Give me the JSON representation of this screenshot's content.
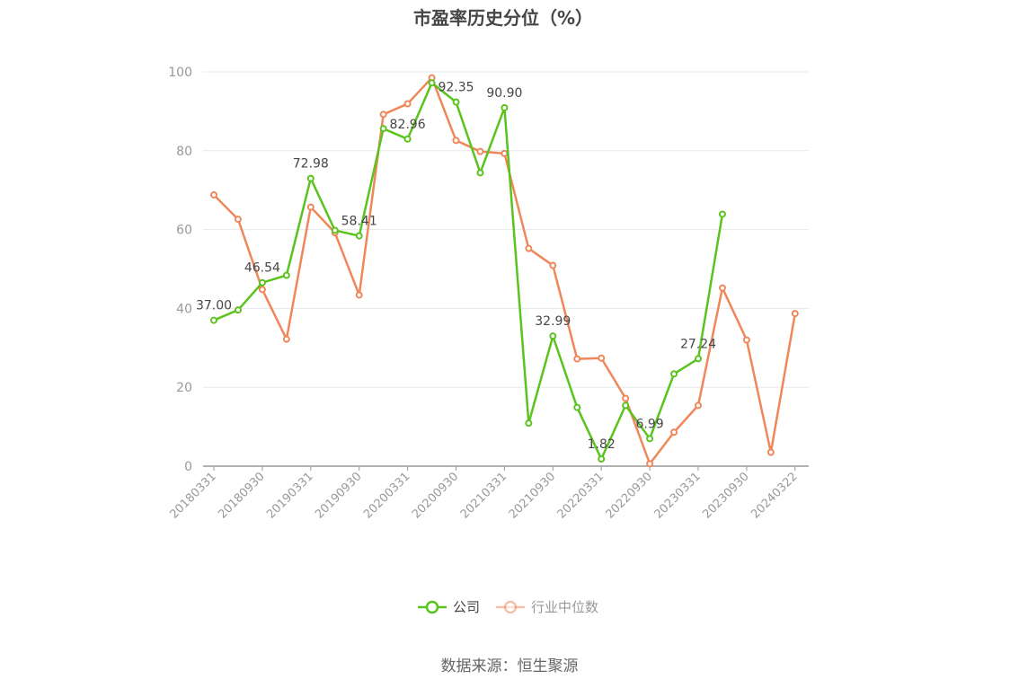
{
  "chart_data": {
    "type": "line",
    "title": "市盈率历史分位（%）",
    "ylim": [
      0,
      100
    ],
    "yticks": [
      0,
      20,
      40,
      60,
      80,
      100
    ],
    "x": [
      "20180331",
      "20180630",
      "20180930",
      "20181231",
      "20190331",
      "20190630",
      "20190930",
      "20191231",
      "20200331",
      "20200630",
      "20200930",
      "20201231",
      "20210331",
      "20210630",
      "20210930",
      "20211231",
      "20220331",
      "20220630",
      "20220930",
      "20221231",
      "20230331",
      "20230630",
      "20230930",
      "20231231",
      "20240322"
    ],
    "xtick_labels": [
      "20180331",
      "20180930",
      "20190331",
      "20190930",
      "20200331",
      "20200930",
      "20210331",
      "20210930",
      "20220331",
      "20220930",
      "20230331",
      "20230930",
      "20240322"
    ],
    "series": [
      {
        "name": "公司",
        "color": "#5ac31e",
        "values": [
          37.0,
          39.6,
          46.54,
          48.4,
          72.98,
          59.8,
          58.41,
          85.6,
          82.96,
          97.2,
          92.35,
          74.4,
          90.9,
          10.9,
          32.99,
          14.9,
          1.82,
          15.4,
          6.99,
          23.4,
          27.24,
          63.9,
          null,
          null,
          null
        ],
        "labels": {
          "0": "37.00",
          "2": "46.54",
          "4": "72.98",
          "6": "58.41",
          "8": "82.96",
          "10": "92.35",
          "12": "90.90",
          "14": "32.99",
          "16": "1.82",
          "18": "6.99",
          "20": "27.24"
        }
      },
      {
        "name": "行业中位数",
        "color": "#f0875a",
        "values": [
          68.8,
          62.6,
          44.8,
          32.2,
          65.7,
          59.2,
          43.4,
          89.2,
          91.9,
          98.5,
          82.6,
          79.8,
          79.3,
          55.2,
          50.9,
          27.2,
          27.4,
          17.2,
          0.6,
          8.6,
          15.4,
          45.2,
          32.0,
          3.5,
          38.7
        ]
      }
    ],
    "legend": {
      "position": "bottom"
    },
    "grid": true,
    "source": "数据来源：恒生聚源"
  }
}
